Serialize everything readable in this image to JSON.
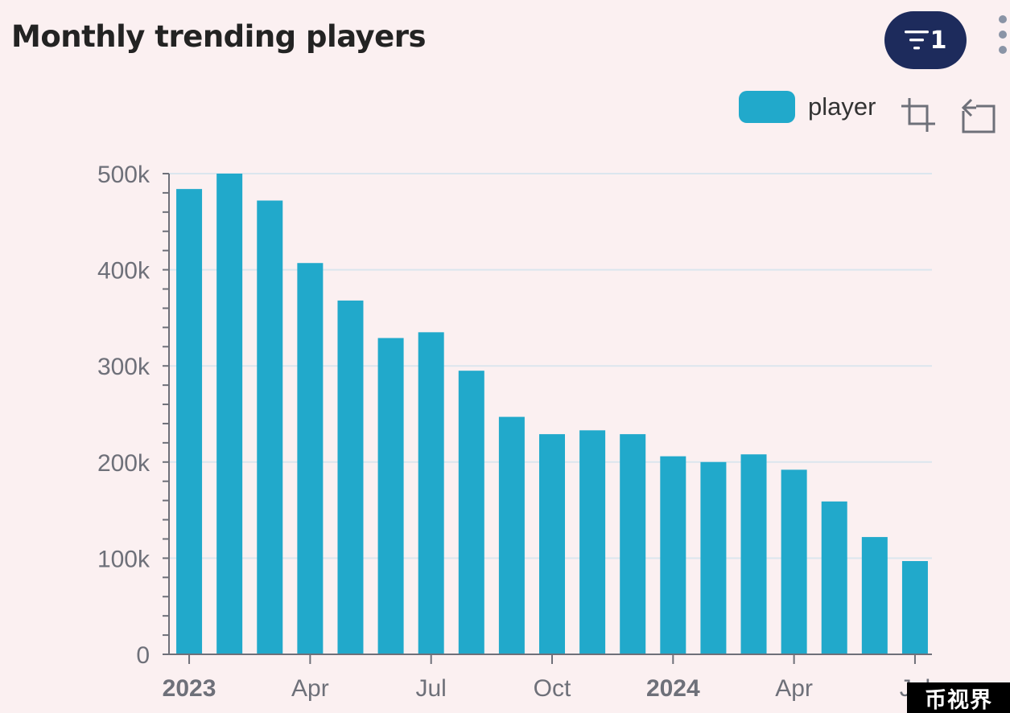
{
  "header": {
    "title": "Monthly trending players",
    "filter_count": "1"
  },
  "legend": {
    "series_label": "player",
    "swatch_color": "#21a9cb"
  },
  "toolbar": {
    "zoom_icon": "data-zoom-icon",
    "restore_icon": "zoom-reset-icon",
    "filter_icon": "filter-icon",
    "more_icon": "more-vertical-icon"
  },
  "watermark": {
    "text": "币视界"
  },
  "chart_data": {
    "type": "bar",
    "title": "Monthly trending players",
    "xlabel": "",
    "ylabel": "",
    "ylim": [
      0,
      500000
    ],
    "y_ticks": [
      {
        "value": 0,
        "label": "0"
      },
      {
        "value": 100000,
        "label": "100k"
      },
      {
        "value": 200000,
        "label": "200k"
      },
      {
        "value": 300000,
        "label": "300k"
      },
      {
        "value": 400000,
        "label": "400k"
      },
      {
        "value": 500000,
        "label": "500k"
      }
    ],
    "x_ticks": [
      {
        "index": 0,
        "label": "2023",
        "bold": true
      },
      {
        "index": 3,
        "label": "Apr",
        "bold": false
      },
      {
        "index": 6,
        "label": "Jul",
        "bold": false
      },
      {
        "index": 9,
        "label": "Oct",
        "bold": false
      },
      {
        "index": 12,
        "label": "2024",
        "bold": true
      },
      {
        "index": 15,
        "label": "Apr",
        "bold": false
      },
      {
        "index": 18,
        "label": "Jul",
        "bold": false
      }
    ],
    "categories": [
      "2023-01",
      "2023-02",
      "2023-03",
      "2023-04",
      "2023-05",
      "2023-06",
      "2023-07",
      "2023-08",
      "2023-09",
      "2023-10",
      "2023-11",
      "2023-12",
      "2024-01",
      "2024-02",
      "2024-03",
      "2024-04",
      "2024-05",
      "2024-06",
      "2024-07"
    ],
    "series": [
      {
        "name": "player",
        "color": "#21a9cb",
        "values": [
          484000,
          500000,
          472000,
          407000,
          368000,
          329000,
          335000,
          295000,
          247000,
          229000,
          233000,
          229000,
          206000,
          200000,
          208000,
          192000,
          159000,
          122000,
          97000
        ]
      }
    ],
    "grid": true,
    "legend_position": "top-right"
  }
}
